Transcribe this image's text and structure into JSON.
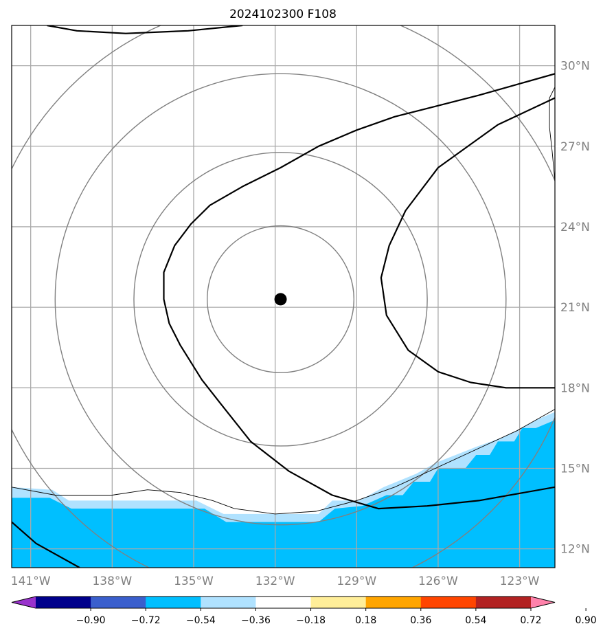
{
  "chart_data": {
    "type": "map",
    "title": "2024102300 F108",
    "x_ticks": [
      "141°W",
      "138°W",
      "135°W",
      "132°W",
      "129°W",
      "126°W",
      "123°W"
    ],
    "y_ticks": [
      "30°N",
      "27°N",
      "24°N",
      "21°N",
      "18°N",
      "15°N",
      "12°N"
    ],
    "lon_range": [
      -141.7,
      -121.7
    ],
    "lat_range": [
      11.3,
      31.5
    ],
    "grid": true,
    "center_marker": {
      "lon": -131.8,
      "lat": 21.3
    },
    "range_rings_deg": [
      2.7,
      5.4,
      8.3,
      11
    ],
    "colorbar": {
      "levels": [
        -0.9,
        -0.72,
        -0.54,
        -0.36,
        -0.18,
        0.18,
        0.36,
        0.54,
        0.72,
        0.9
      ],
      "labels": [
        "−0.90",
        "−0.72",
        "−0.54",
        "−0.36",
        "−0.18",
        "0.18",
        "0.36",
        "0.54",
        "0.72",
        "0.90"
      ],
      "colors": [
        "#9932cc",
        "#00008b",
        "#3a5fcd",
        "#00bfff",
        "#b0e2ff",
        "#ffffff",
        "#ffee99",
        "#ffa500",
        "#ff4500",
        "#b22222",
        "#ff82ab"
      ]
    },
    "filled_field": [
      {
        "level": "-0.36 to -0.18",
        "color": "#00bfff",
        "boundary": [
          [
            -141.7,
            13.9
          ],
          [
            -140.3,
            13.9
          ],
          [
            -139.5,
            13.5
          ],
          [
            -134.6,
            13.5
          ],
          [
            -133.8,
            13.0
          ],
          [
            -130.4,
            13.0
          ],
          [
            -129.8,
            13.5
          ],
          [
            -128.8,
            13.6
          ],
          [
            -127.9,
            14.0
          ],
          [
            -127.3,
            14.0
          ],
          [
            -126.9,
            14.5
          ],
          [
            -126.3,
            14.5
          ],
          [
            -126.0,
            15.0
          ],
          [
            -125.0,
            15.0
          ],
          [
            -124.6,
            15.5
          ],
          [
            -124.1,
            15.5
          ],
          [
            -123.8,
            16.0
          ],
          [
            -123.2,
            16.0
          ],
          [
            -122.9,
            16.5
          ],
          [
            -122.4,
            16.5
          ],
          [
            -121.7,
            16.8
          ]
        ]
      },
      {
        "level": "-0.18 to 0",
        "color": "#b0e2ff",
        "boundary": [
          [
            -141.7,
            14.3
          ],
          [
            -140.2,
            14.2
          ],
          [
            -139.6,
            13.8
          ],
          [
            -134.9,
            13.8
          ],
          [
            -133.9,
            13.3
          ],
          [
            -130.4,
            13.3
          ],
          [
            -129.9,
            13.8
          ],
          [
            -128.9,
            13.8
          ],
          [
            -128.0,
            14.3
          ],
          [
            -126.8,
            14.8
          ],
          [
            -126.1,
            15.2
          ],
          [
            -124.6,
            15.8
          ],
          [
            -123.5,
            16.2
          ],
          [
            -122.4,
            16.8
          ],
          [
            -121.7,
            17.1
          ]
        ]
      }
    ],
    "contours": [
      {
        "id": "north-arc",
        "points": [
          [
            -140.4,
            31.5
          ],
          [
            -139.3,
            31.3
          ],
          [
            -137.5,
            31.2
          ],
          [
            -135.2,
            31.3
          ],
          [
            -133.2,
            31.5
          ]
        ]
      },
      {
        "id": "main-loop",
        "points": [
          [
            -121.7,
            29.7
          ],
          [
            -124.5,
            28.9
          ],
          [
            -127.6,
            28.1
          ],
          [
            -129.0,
            27.6
          ],
          [
            -130.4,
            27.0
          ],
          [
            -131.8,
            26.2
          ],
          [
            -133.2,
            25.5
          ],
          [
            -134.4,
            24.8
          ],
          [
            -135.1,
            24.1
          ],
          [
            -135.7,
            23.3
          ],
          [
            -136.1,
            22.3
          ],
          [
            -136.1,
            21.3
          ],
          [
            -135.9,
            20.4
          ],
          [
            -135.5,
            19.6
          ],
          [
            -134.7,
            18.3
          ],
          [
            -134.0,
            17.4
          ],
          [
            -132.9,
            16.0
          ],
          [
            -131.5,
            14.9
          ],
          [
            -129.9,
            14.0
          ],
          [
            -128.2,
            13.5
          ],
          [
            -126.4,
            13.6
          ],
          [
            -124.5,
            13.8
          ],
          [
            -121.7,
            14.3
          ]
        ]
      },
      {
        "id": "east-loop",
        "points": [
          [
            -121.7,
            28.8
          ],
          [
            -123.8,
            27.8
          ],
          [
            -126.0,
            26.2
          ],
          [
            -127.2,
            24.6
          ],
          [
            -127.8,
            23.3
          ],
          [
            -128.1,
            22.1
          ],
          [
            -127.9,
            20.7
          ],
          [
            -127.1,
            19.4
          ],
          [
            -126.0,
            18.6
          ],
          [
            -124.8,
            18.2
          ],
          [
            -123.5,
            18.0
          ],
          [
            -121.7,
            18.0
          ]
        ]
      },
      {
        "id": "southwest-corner",
        "points": [
          [
            -141.7,
            13.0
          ],
          [
            -140.8,
            12.2
          ],
          [
            -139.2,
            11.3
          ]
        ]
      }
    ],
    "thin_line": [
      [
        -141.7,
        14.3
      ],
      [
        -140.1,
        14.0
      ],
      [
        -138.0,
        14.0
      ],
      [
        -136.7,
        14.2
      ],
      [
        -135.5,
        14.1
      ],
      [
        -134.3,
        13.8
      ],
      [
        -133.5,
        13.5
      ],
      [
        -132.0,
        13.3
      ],
      [
        -130.5,
        13.4
      ],
      [
        -129.0,
        13.8
      ],
      [
        -127.6,
        14.3
      ],
      [
        -126.1,
        15.0
      ],
      [
        -124.6,
        15.7
      ],
      [
        -123.1,
        16.4
      ],
      [
        -121.7,
        17.2
      ]
    ],
    "thin_line_east": [
      [
        -121.7,
        29.2
      ],
      [
        -121.9,
        28.8
      ],
      [
        -121.9,
        27.7
      ],
      [
        -121.8,
        26.8
      ],
      [
        -121.7,
        25.7
      ]
    ]
  }
}
